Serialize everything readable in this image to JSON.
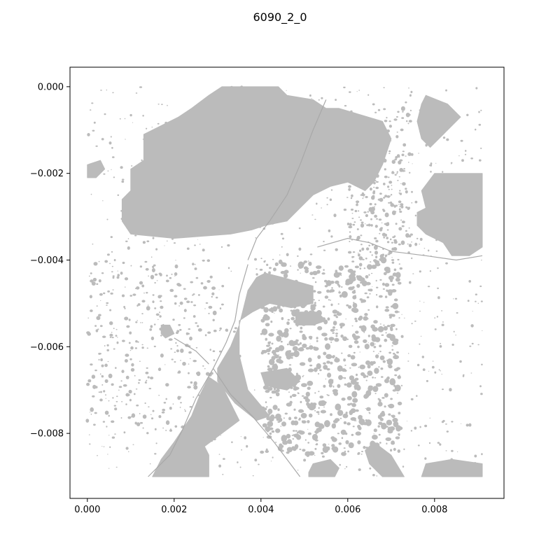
{
  "figure": {
    "title": "6090_2_0",
    "fill_color": "#bbbbbb",
    "axes_color": "#000000",
    "background": "#ffffff"
  },
  "axes": {
    "xlim": [
      -0.0004,
      0.0096
    ],
    "ylim": [
      -0.0095,
      0.00045
    ],
    "x_ticks": [
      {
        "value": 0.0,
        "label": "0.000"
      },
      {
        "value": 0.002,
        "label": "0.002"
      },
      {
        "value": 0.004,
        "label": "0.004"
      },
      {
        "value": 0.006,
        "label": "0.006"
      },
      {
        "value": 0.008,
        "label": "0.008"
      }
    ],
    "y_ticks": [
      {
        "value": 0.0,
        "label": "0.000"
      },
      {
        "value": -0.002,
        "label": "−0.002"
      },
      {
        "value": -0.004,
        "label": "−0.004"
      },
      {
        "value": -0.006,
        "label": "−0.006"
      },
      {
        "value": -0.008,
        "label": "−0.008"
      }
    ]
  },
  "map_data": {
    "features": [
      {
        "name": "large-water-body-north",
        "points": [
          [
            0.0031,
            0.0
          ],
          [
            0.0044,
            0.0
          ],
          [
            0.0046,
            -0.0002
          ],
          [
            0.0052,
            -0.0003
          ],
          [
            0.0055,
            -0.0005
          ],
          [
            0.0058,
            -0.0005
          ],
          [
            0.0068,
            -0.0008
          ],
          [
            0.007,
            -0.0012
          ],
          [
            0.0068,
            -0.0018
          ],
          [
            0.0066,
            -0.0022
          ],
          [
            0.0064,
            -0.0024
          ],
          [
            0.006,
            -0.0022
          ],
          [
            0.0056,
            -0.0023
          ],
          [
            0.0052,
            -0.0025
          ],
          [
            0.0049,
            -0.0028
          ],
          [
            0.0046,
            -0.0031
          ],
          [
            0.0041,
            -0.0032
          ],
          [
            0.0038,
            -0.0033
          ],
          [
            0.0033,
            -0.0034
          ],
          [
            0.002,
            -0.0035
          ],
          [
            0.001,
            -0.0034
          ],
          [
            0.0008,
            -0.0031
          ],
          [
            0.0008,
            -0.0026
          ],
          [
            0.001,
            -0.0024
          ],
          [
            0.001,
            -0.0019
          ],
          [
            0.0013,
            -0.0017
          ],
          [
            0.0013,
            -0.0011
          ],
          [
            0.0017,
            -0.0009
          ],
          [
            0.0021,
            -0.0007
          ],
          [
            0.0024,
            -0.0005
          ],
          [
            0.0028,
            -0.0002
          ]
        ]
      },
      {
        "name": "water-body-northeast",
        "points": [
          [
            0.0078,
            -0.0002
          ],
          [
            0.0083,
            -0.0004
          ],
          [
            0.0086,
            -0.0007
          ],
          [
            0.0082,
            -0.0011
          ],
          [
            0.0079,
            -0.0014
          ],
          [
            0.0077,
            -0.0012
          ],
          [
            0.0076,
            -0.0008
          ],
          [
            0.0077,
            -0.0004
          ]
        ]
      },
      {
        "name": "water-body-east",
        "points": [
          [
            0.008,
            -0.002
          ],
          [
            0.0091,
            -0.002
          ],
          [
            0.0091,
            -0.0037
          ],
          [
            0.0088,
            -0.0039
          ],
          [
            0.0084,
            -0.0039
          ],
          [
            0.0082,
            -0.0036
          ],
          [
            0.0078,
            -0.0034
          ],
          [
            0.0076,
            -0.0032
          ],
          [
            0.0076,
            -0.0029
          ],
          [
            0.0078,
            -0.0028
          ],
          [
            0.0077,
            -0.0024
          ]
        ]
      },
      {
        "name": "water-body-west-small",
        "points": [
          [
            0.0,
            -0.0018
          ],
          [
            0.0003,
            -0.0017
          ],
          [
            0.0004,
            -0.0019
          ],
          [
            0.0002,
            -0.0021
          ],
          [
            0.0,
            -0.0021
          ]
        ]
      },
      {
        "name": "water-body-central",
        "points": [
          [
            0.0041,
            -0.0043
          ],
          [
            0.0045,
            -0.0044
          ],
          [
            0.0052,
            -0.0046
          ],
          [
            0.0052,
            -0.005
          ],
          [
            0.0047,
            -0.0051
          ],
          [
            0.0042,
            -0.005
          ],
          [
            0.0038,
            -0.0052
          ],
          [
            0.0035,
            -0.0054
          ],
          [
            0.0035,
            -0.0062
          ],
          [
            0.0037,
            -0.007
          ],
          [
            0.0042,
            -0.0076
          ],
          [
            0.0039,
            -0.0077
          ],
          [
            0.0034,
            -0.0073
          ],
          [
            0.003,
            -0.0068
          ],
          [
            0.003,
            -0.0065
          ],
          [
            0.0033,
            -0.006
          ],
          [
            0.0035,
            -0.0055
          ],
          [
            0.0037,
            -0.0047
          ],
          [
            0.0039,
            -0.0044
          ]
        ]
      },
      {
        "name": "water-body-southwest",
        "points": [
          [
            0.0028,
            -0.0067
          ],
          [
            0.0031,
            -0.0069
          ],
          [
            0.0035,
            -0.0077
          ],
          [
            0.0031,
            -0.008
          ],
          [
            0.0027,
            -0.0083
          ],
          [
            0.0028,
            -0.0085
          ],
          [
            0.0028,
            -0.009
          ],
          [
            0.0015,
            -0.009
          ],
          [
            0.0017,
            -0.0086
          ],
          [
            0.002,
            -0.0082
          ],
          [
            0.0024,
            -0.0076
          ],
          [
            0.0026,
            -0.0071
          ]
        ]
      },
      {
        "name": "water-body-south-small",
        "points": [
          [
            0.0052,
            -0.0087
          ],
          [
            0.0056,
            -0.0086
          ],
          [
            0.0058,
            -0.0088
          ],
          [
            0.0057,
            -0.009
          ],
          [
            0.0051,
            -0.009
          ],
          [
            0.0051,
            -0.0089
          ]
        ]
      },
      {
        "name": "water-body-southeast",
        "points": [
          [
            0.0066,
            -0.0082
          ],
          [
            0.007,
            -0.0085
          ],
          [
            0.0073,
            -0.009
          ],
          [
            0.0068,
            -0.009
          ],
          [
            0.0065,
            -0.0087
          ],
          [
            0.0064,
            -0.0084
          ]
        ]
      },
      {
        "name": "water-body-southeast-corner",
        "points": [
          [
            0.0078,
            -0.0087
          ],
          [
            0.0084,
            -0.0086
          ],
          [
            0.0091,
            -0.0087
          ],
          [
            0.0091,
            -0.009
          ],
          [
            0.0077,
            -0.009
          ]
        ]
      },
      {
        "name": "water-body-center-east",
        "points": [
          [
            0.0048,
            -0.0052
          ],
          [
            0.0053,
            -0.0052
          ],
          [
            0.0055,
            -0.0054
          ],
          [
            0.0052,
            -0.0055
          ],
          [
            0.0048,
            -0.0055
          ]
        ]
      },
      {
        "name": "water-body-cluster-south",
        "points": [
          [
            0.004,
            -0.0066
          ],
          [
            0.0046,
            -0.0065
          ],
          [
            0.0049,
            -0.0068
          ],
          [
            0.0046,
            -0.007
          ],
          [
            0.0041,
            -0.0069
          ]
        ]
      },
      {
        "name": "water-body-west-lobe",
        "points": [
          [
            0.0017,
            -0.0055
          ],
          [
            0.0019,
            -0.0055
          ],
          [
            0.002,
            -0.0057
          ],
          [
            0.0018,
            -0.0058
          ],
          [
            0.0017,
            -0.0057
          ]
        ]
      }
    ],
    "lines": [
      {
        "name": "river-north",
        "points": [
          [
            0.0055,
            -0.0003
          ],
          [
            0.0052,
            -0.001
          ],
          [
            0.0049,
            -0.0018
          ],
          [
            0.0046,
            -0.0025
          ],
          [
            0.0042,
            -0.0031
          ],
          [
            0.0039,
            -0.0035
          ],
          [
            0.0037,
            -0.004
          ]
        ]
      },
      {
        "name": "river-central",
        "points": [
          [
            0.0037,
            -0.0041
          ],
          [
            0.0035,
            -0.0048
          ],
          [
            0.0034,
            -0.0054
          ],
          [
            0.0032,
            -0.0059
          ],
          [
            0.0029,
            -0.0065
          ],
          [
            0.0025,
            -0.0072
          ],
          [
            0.0022,
            -0.0079
          ],
          [
            0.0019,
            -0.0085
          ],
          [
            0.0014,
            -0.009
          ]
        ]
      },
      {
        "name": "river-east",
        "points": [
          [
            0.0053,
            -0.0037
          ],
          [
            0.006,
            -0.0035
          ],
          [
            0.0065,
            -0.0036
          ],
          [
            0.007,
            -0.0038
          ],
          [
            0.0078,
            -0.0039
          ],
          [
            0.0085,
            -0.004
          ],
          [
            0.0091,
            -0.0039
          ]
        ]
      },
      {
        "name": "river-south",
        "points": [
          [
            0.0029,
            -0.0065
          ],
          [
            0.0033,
            -0.0071
          ],
          [
            0.0038,
            -0.0076
          ],
          [
            0.0043,
            -0.0082
          ],
          [
            0.0049,
            -0.009
          ]
        ]
      },
      {
        "name": "river-west-branch",
        "points": [
          [
            0.002,
            -0.0058
          ],
          [
            0.0025,
            -0.0061
          ],
          [
            0.0028,
            -0.0064
          ]
        ]
      }
    ]
  }
}
